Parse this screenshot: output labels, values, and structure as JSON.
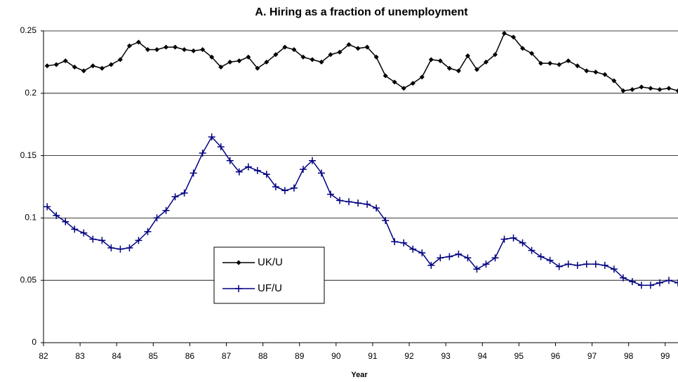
{
  "chart_data": {
    "type": "line",
    "title": "A. Hiring as a fraction of unemployment",
    "xlabel": "Year",
    "x": [
      82.1,
      82.35,
      82.6,
      82.85,
      83.1,
      83.35,
      83.6,
      83.85,
      84.1,
      84.35,
      84.6,
      84.85,
      85.1,
      85.35,
      85.6,
      85.85,
      86.1,
      86.35,
      86.6,
      86.85,
      87.1,
      87.35,
      87.6,
      87.85,
      88.1,
      88.35,
      88.6,
      88.85,
      89.1,
      89.35,
      89.6,
      89.85,
      90.1,
      90.35,
      90.6,
      90.85,
      91.1,
      91.35,
      91.6,
      91.85,
      92.1,
      92.35,
      92.6,
      92.85,
      93.1,
      93.35,
      93.6,
      93.85,
      94.1,
      94.35,
      94.6,
      94.85,
      95.1,
      95.35,
      95.6,
      95.85,
      96.1,
      96.35,
      96.6,
      96.85,
      97.1,
      97.35,
      97.6,
      97.85,
      98.1,
      98.35,
      98.6,
      98.85,
      99.1,
      99.35
    ],
    "series": [
      {
        "name": "UK/U",
        "color": "#000000",
        "marker": "diamond",
        "values": [
          0.222,
          0.223,
          0.226,
          0.221,
          0.218,
          0.222,
          0.22,
          0.223,
          0.227,
          0.238,
          0.241,
          0.235,
          0.235,
          0.237,
          0.237,
          0.235,
          0.234,
          0.235,
          0.229,
          0.221,
          0.225,
          0.226,
          0.229,
          0.22,
          0.225,
          0.231,
          0.237,
          0.235,
          0.229,
          0.227,
          0.225,
          0.231,
          0.233,
          0.239,
          0.236,
          0.237,
          0.229,
          0.214,
          0.209,
          0.204,
          0.208,
          0.213,
          0.227,
          0.226,
          0.22,
          0.218,
          0.23,
          0.219,
          0.225,
          0.231,
          0.248,
          0.245,
          0.236,
          0.232,
          0.224,
          0.224,
          0.223,
          0.226,
          0.222,
          0.218,
          0.217,
          0.215,
          0.21,
          0.202,
          0.203,
          0.205,
          0.204,
          0.203,
          0.204,
          0.202
        ]
      },
      {
        "name": "UF/U",
        "color": "#000080",
        "marker": "plus",
        "values": [
          0.109,
          0.102,
          0.097,
          0.091,
          0.088,
          0.083,
          0.082,
          0.076,
          0.075,
          0.076,
          0.082,
          0.089,
          0.1,
          0.106,
          0.117,
          0.12,
          0.136,
          0.152,
          0.165,
          0.157,
          0.146,
          0.137,
          0.141,
          0.138,
          0.135,
          0.125,
          0.122,
          0.124,
          0.139,
          0.146,
          0.136,
          0.119,
          0.114,
          0.113,
          0.112,
          0.111,
          0.108,
          0.098,
          0.081,
          0.08,
          0.075,
          0.072,
          0.062,
          0.068,
          0.069,
          0.071,
          0.068,
          0.059,
          0.063,
          0.068,
          0.083,
          0.084,
          0.08,
          0.074,
          0.069,
          0.066,
          0.061,
          0.063,
          0.062,
          0.063,
          0.063,
          0.062,
          0.059,
          0.052,
          0.049,
          0.046,
          0.046,
          0.048,
          0.05,
          0.048
        ]
      }
    ],
    "xlim": [
      82,
      99.35
    ],
    "xticks": [
      82,
      83,
      84,
      85,
      86,
      87,
      88,
      89,
      90,
      91,
      92,
      93,
      94,
      95,
      96,
      97,
      98,
      99
    ],
    "ylim": [
      0,
      0.25
    ],
    "yticks": [
      0,
      0.05,
      0.1,
      0.15,
      0.2,
      0.25
    ],
    "grid": true,
    "legend": "center"
  }
}
